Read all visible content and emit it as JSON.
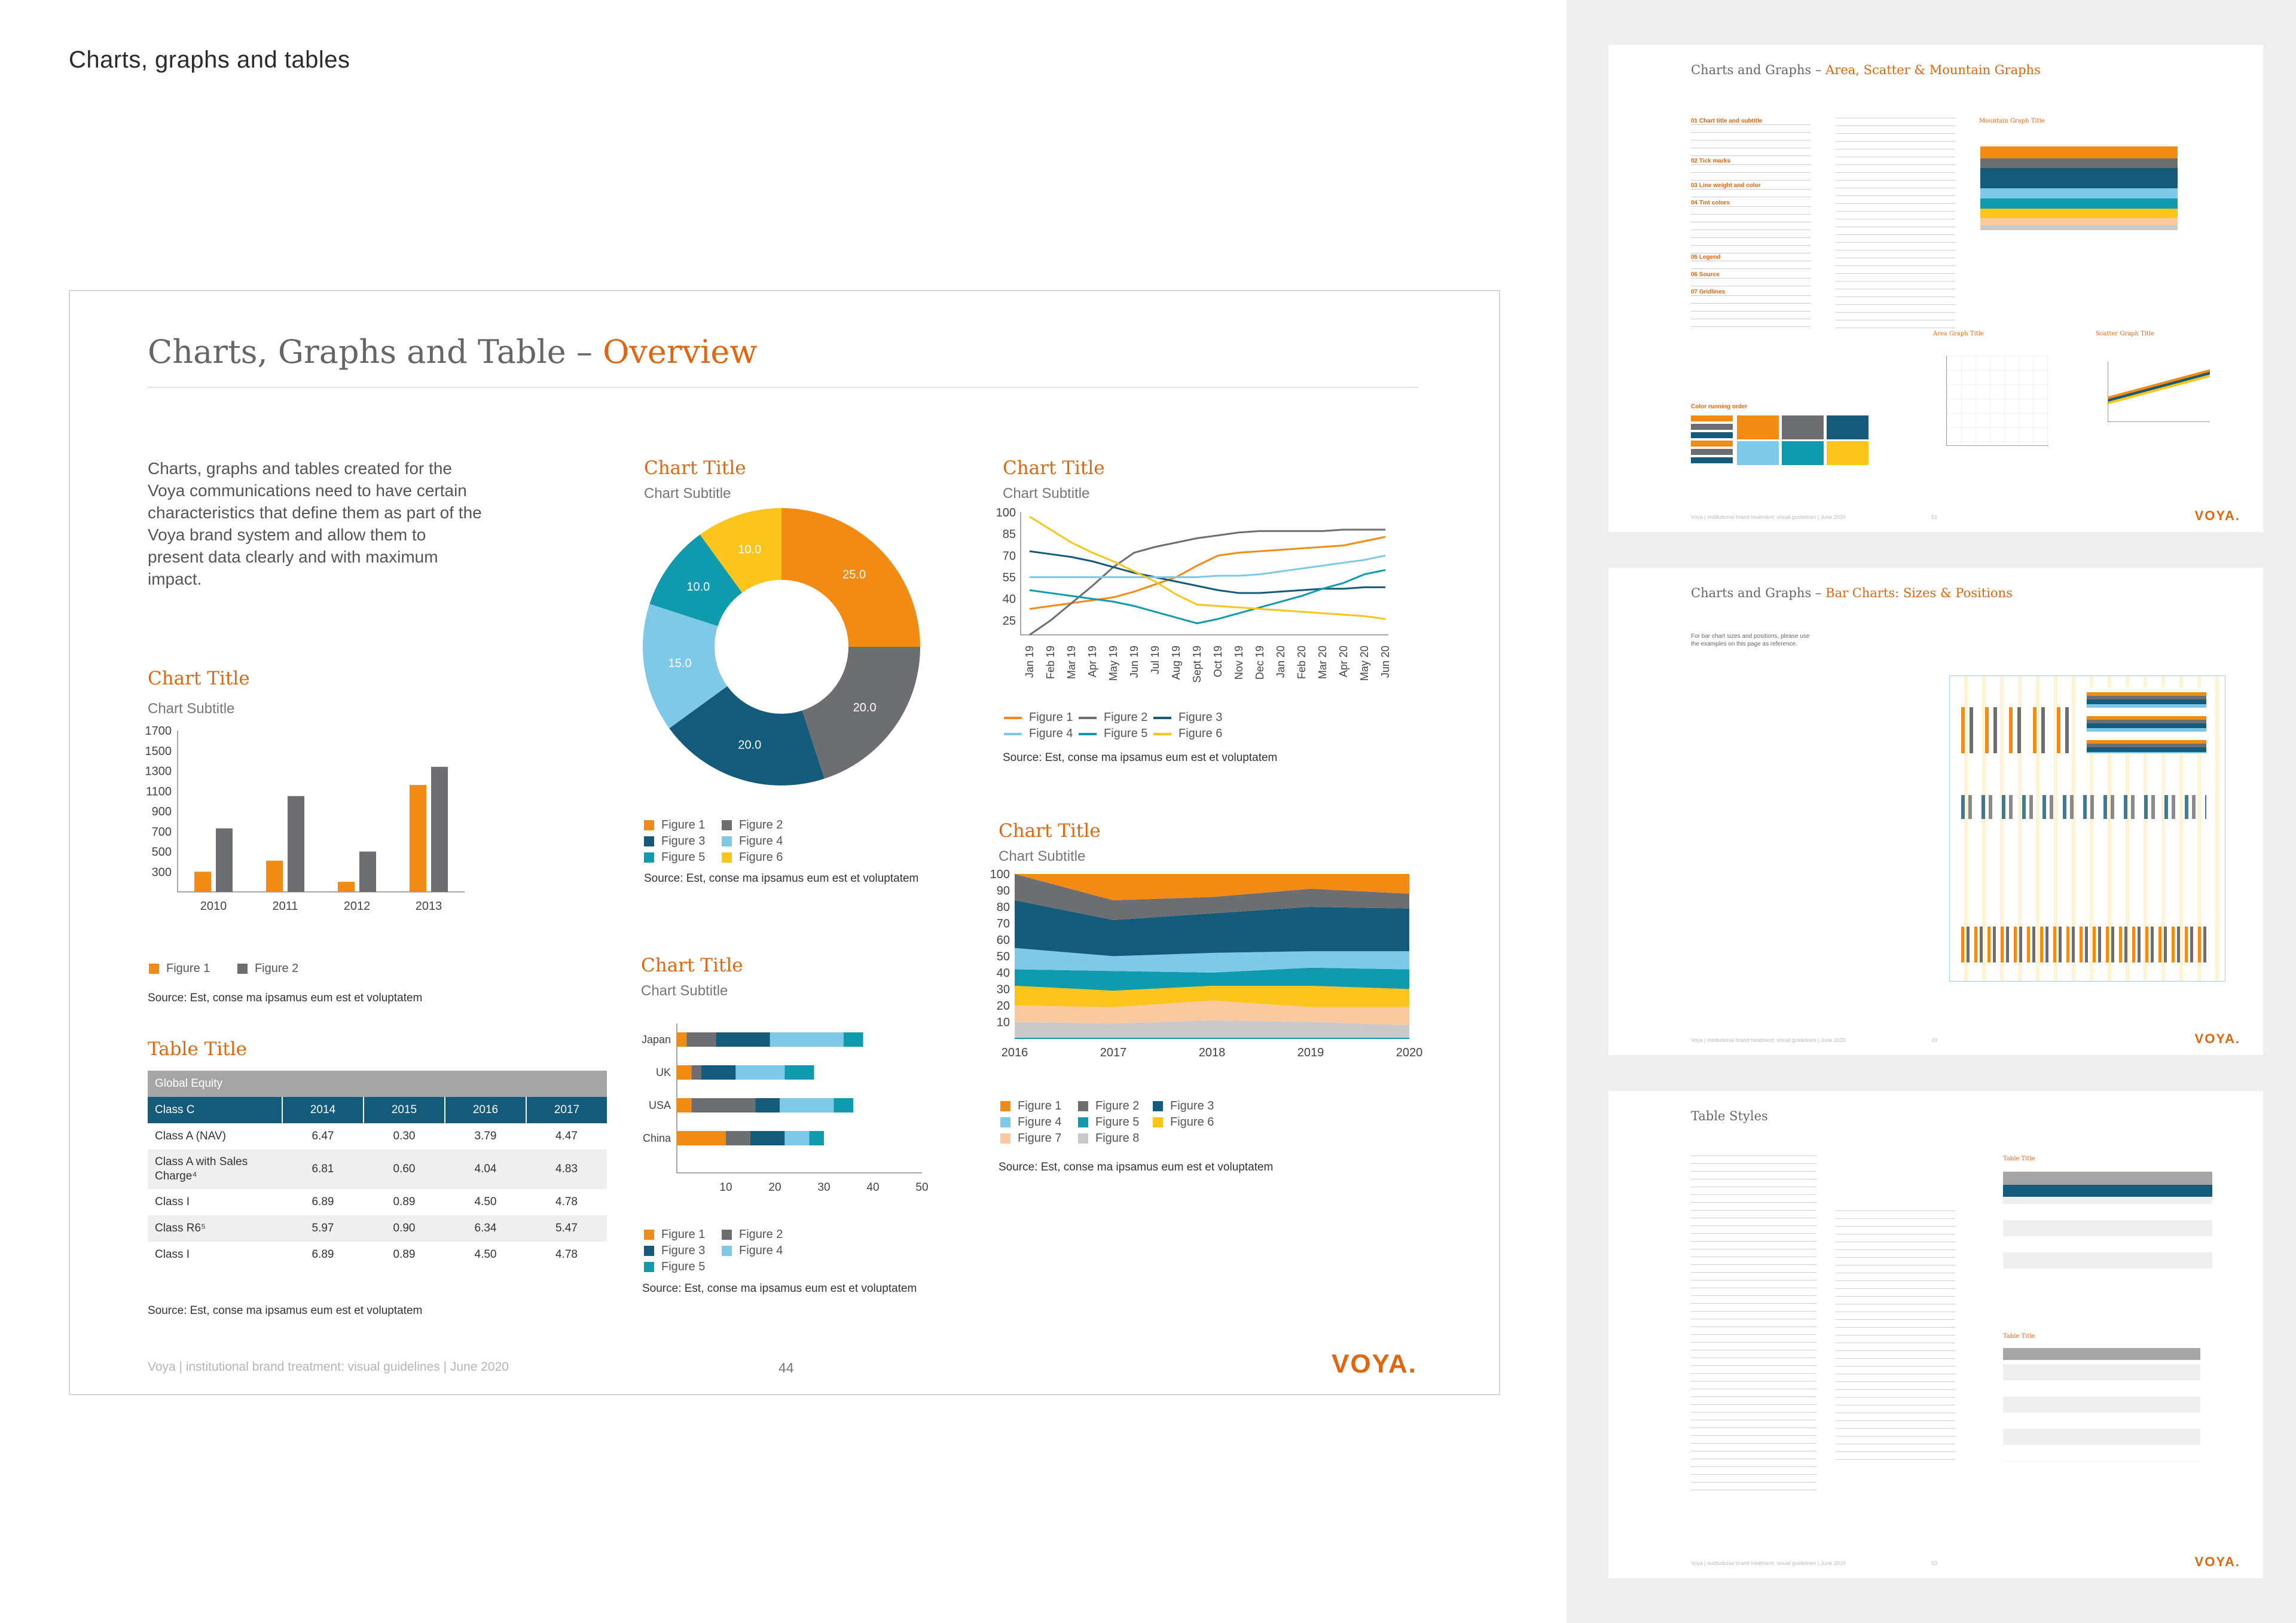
{
  "header": {
    "title": "Charts, graphs and tables"
  },
  "page": {
    "title_main": "Charts, Graphs and Table – ",
    "title_accent": "Overview",
    "intro": "Charts, graphs and tables created for the Voya communications need to have certain characteristics that define them as part of the Voya brand system and allow them to present data clearly and with maximum impact.",
    "footer_left": "Voya | institutional brand treatment: visual guidelines | June 2020",
    "page_number": "44",
    "logo": "VOYA."
  },
  "source_text": "Source: Est, conse ma ipsamus eum est et voluptatem",
  "colors": {
    "orange": "#f28a14",
    "gray": "#6d6e71",
    "darkblue": "#145a7a",
    "lightblue": "#7ec8e8",
    "teal": "#0f9aad",
    "yellow": "#fbc51c",
    "peach": "#fbc9a0",
    "lightgray": "#c9c9c9",
    "table_header_gray": "#a5a5a5",
    "table_header_blue": "#145a7a"
  },
  "chart_data": [
    {
      "id": "bar",
      "type": "bar",
      "title": "Chart Title",
      "subtitle": "Chart Subtitle",
      "categories": [
        "2010",
        "2011",
        "2012",
        "2013"
      ],
      "series": [
        {
          "name": "Figure 1",
          "color": "#f28a14",
          "values": [
            300,
            410,
            200,
            1160
          ]
        },
        {
          "name": "Figure 2",
          "color": "#6d6e71",
          "values": [
            730,
            1050,
            500,
            1340
          ]
        }
      ],
      "yticks": [
        300,
        500,
        700,
        900,
        1100,
        1300,
        1500,
        1700
      ],
      "ylim": [
        100,
        1700
      ]
    },
    {
      "id": "donut",
      "type": "pie",
      "title": "Chart Title",
      "subtitle": "Chart Subtitle",
      "slices": [
        {
          "name": "Figure 1",
          "value": 25.0,
          "label": "25.0",
          "color": "#f28a14"
        },
        {
          "name": "Figure 2",
          "value": 20.0,
          "label": "20.0",
          "color": "#6d6e71"
        },
        {
          "name": "Figure 3",
          "value": 20.0,
          "label": "20.0",
          "color": "#145a7a"
        },
        {
          "name": "Figure 4",
          "value": 15.0,
          "label": "15.0",
          "color": "#7ec8e8"
        },
        {
          "name": "Figure 5",
          "value": 10.0,
          "label": "10.0",
          "color": "#0f9aad"
        },
        {
          "name": "Figure 6",
          "value": 10.0,
          "label": "10.0",
          "color": "#fbc51c"
        }
      ]
    },
    {
      "id": "hbar",
      "type": "bar",
      "orientation": "horizontal",
      "stacked": true,
      "title": "Chart Title",
      "subtitle": "Chart Subtitle",
      "categories": [
        "Japan",
        "UK",
        "USA",
        "China"
      ],
      "series": [
        {
          "name": "Figure 1",
          "color": "#f28a14",
          "values": [
            2,
            3,
            3,
            10
          ]
        },
        {
          "name": "Figure 2",
          "color": "#6d6e71",
          "values": [
            6,
            2,
            13,
            5
          ]
        },
        {
          "name": "Figure 3",
          "color": "#145a7a",
          "values": [
            11,
            7,
            5,
            7
          ]
        },
        {
          "name": "Figure 4",
          "color": "#7ec8e8",
          "values": [
            15,
            10,
            11,
            5
          ]
        },
        {
          "name": "Figure 5",
          "color": "#0f9aad",
          "values": [
            4,
            6,
            4,
            3
          ]
        }
      ],
      "xticks": [
        10,
        20,
        30,
        40,
        50
      ],
      "xlim": [
        0,
        50
      ]
    },
    {
      "id": "line",
      "type": "line",
      "title": "Chart Title",
      "subtitle": "Chart Subtitle",
      "categories": [
        "Jan 19",
        "Feb 19",
        "Mar 19",
        "Apr 19",
        "May 19",
        "Jun 19",
        "Jul 19",
        "Aug 19",
        "Sept 19",
        "Oct 19",
        "Nov 19",
        "Dec 19",
        "Jan 20",
        "Feb 20",
        "Mar 20",
        "Apr 20",
        "May 20",
        "Jun 20"
      ],
      "yticks": [
        25,
        40,
        55,
        70,
        85,
        100
      ],
      "ylim": [
        15,
        100
      ],
      "series": [
        {
          "name": "Figure 1",
          "color": "#f28a14",
          "values": [
            33,
            35,
            37,
            39,
            41,
            45,
            50,
            55,
            63,
            70,
            72,
            73,
            74,
            75,
            76,
            77,
            80,
            83
          ]
        },
        {
          "name": "Figure 2",
          "color": "#6d6e71",
          "values": [
            15,
            25,
            37,
            49,
            62,
            72,
            76,
            79,
            82,
            84,
            86,
            87,
            87,
            87,
            87,
            88,
            88,
            88
          ]
        },
        {
          "name": "Figure 3",
          "color": "#145a7a",
          "values": [
            73,
            71,
            69,
            66,
            62,
            58,
            55,
            52,
            49,
            46,
            44,
            44,
            45,
            46,
            47,
            47,
            48,
            48
          ]
        },
        {
          "name": "Figure 4",
          "color": "#7ec8e8",
          "values": [
            55,
            55,
            55,
            55,
            55,
            55,
            55,
            55,
            55,
            56,
            56,
            57,
            59,
            61,
            63,
            65,
            67,
            70
          ]
        },
        {
          "name": "Figure 5",
          "color": "#0f9aad",
          "values": [
            46,
            44,
            42,
            40,
            38,
            35,
            31,
            27,
            23,
            26,
            30,
            34,
            38,
            42,
            47,
            51,
            57,
            60
          ]
        },
        {
          "name": "Figure 6",
          "color": "#fbc51c",
          "values": [
            97,
            88,
            79,
            72,
            66,
            59,
            52,
            43,
            36,
            35,
            34,
            33,
            32,
            31,
            30,
            29,
            28,
            26
          ]
        }
      ]
    },
    {
      "id": "area",
      "type": "area",
      "stacked": true,
      "title": "Chart Title",
      "subtitle": "Chart Subtitle",
      "x": [
        "2016",
        "2017",
        "2018",
        "2019",
        "2020"
      ],
      "yticks": [
        10,
        20,
        30,
        40,
        50,
        60,
        70,
        80,
        90,
        100
      ],
      "ylim": [
        0,
        100
      ],
      "series": [
        {
          "name": "Figure 8",
          "color": "#c9c9c9",
          "values": [
            10,
            9,
            11,
            10,
            8
          ]
        },
        {
          "name": "Figure 7",
          "color": "#fbc9a0",
          "values": [
            10,
            10,
            12,
            9,
            11
          ]
        },
        {
          "name": "Figure 6",
          "color": "#fbc51c",
          "values": [
            12,
            10,
            9,
            13,
            11
          ]
        },
        {
          "name": "Figure 5",
          "color": "#0f9aad",
          "values": [
            10,
            12,
            8,
            11,
            12
          ]
        },
        {
          "name": "Figure 4",
          "color": "#7ec8e8",
          "values": [
            13,
            9,
            12,
            10,
            11
          ]
        },
        {
          "name": "Figure 3",
          "color": "#145a7a",
          "values": [
            29,
            22,
            24,
            27,
            26
          ]
        },
        {
          "name": "Figure 2",
          "color": "#6d6e71",
          "values": [
            16,
            12,
            10,
            11,
            9
          ]
        },
        {
          "name": "Figure 1",
          "color": "#f28a14",
          "values": [
            0,
            16,
            14,
            9,
            12
          ]
        }
      ]
    }
  ],
  "legends": {
    "bar": [
      "Figure 1",
      "Figure 2"
    ],
    "donut": [
      "Figure 1",
      "Figure 2",
      "Figure 3",
      "Figure 4",
      "Figure 5",
      "Figure 6"
    ],
    "hbar": [
      "Figure 1",
      "Figure 2",
      "Figure 3",
      "Figure 4",
      "Figure 5"
    ],
    "line": [
      "Figure 1",
      "Figure 2",
      "Figure 3",
      "Figure 4",
      "Figure 5",
      "Figure 6"
    ],
    "area": [
      "Figure 1",
      "Figure 2",
      "Figure 3",
      "Figure 4",
      "Figure 5",
      "Figure 6",
      "Figure 7",
      "Figure 8"
    ]
  },
  "table": {
    "title": "Table Title",
    "group_header": "Global Equity",
    "columns": [
      "Class C",
      "2014",
      "2015",
      "2016",
      "2017"
    ],
    "rows": [
      [
        "Class A (NAV)",
        "6.47",
        "0.30",
        "3.79",
        "4.47"
      ],
      [
        "Class A with Sales Charge⁴",
        "6.81",
        "0.60",
        "4.04",
        "4.83"
      ],
      [
        "Class I",
        "6.89",
        "0.89",
        "4.50",
        "4.78"
      ],
      [
        "Class R6⁵",
        "5.97",
        "0.90",
        "6.34",
        "5.47"
      ],
      [
        "Class I",
        "6.89",
        "0.89",
        "4.50",
        "4.78"
      ]
    ]
  },
  "thumbs": [
    {
      "title_main": "Charts and Graphs – ",
      "title_accent": "Area, Scatter & Mountain Graphs",
      "logo": "VOYA.",
      "footer": "Voya | institutional brand treatment: visual guidelines | June 2020",
      "page_number": "51",
      "labels": [
        "Mountain Graph Title",
        "Area Graph Title",
        "Scatter Graph Title",
        "Color running order"
      ]
    },
    {
      "title_main": "Charts and Graphs – ",
      "title_accent": "Bar Charts: Sizes & Positions",
      "logo": "VOYA.",
      "footer": "Voya | institutional brand treatment: visual guidelines | June 2020",
      "page_number": "49",
      "intro": "For bar chart sizes and positions, please use the examples on this page as reference."
    },
    {
      "title_main": "Table Styles",
      "title_accent": "",
      "logo": "VOYA.",
      "footer": "Voya | institutional brand treatment: visual guidelines | June 2020",
      "page_number": "53",
      "labels": [
        "Table Title",
        "Table Title"
      ]
    }
  ]
}
